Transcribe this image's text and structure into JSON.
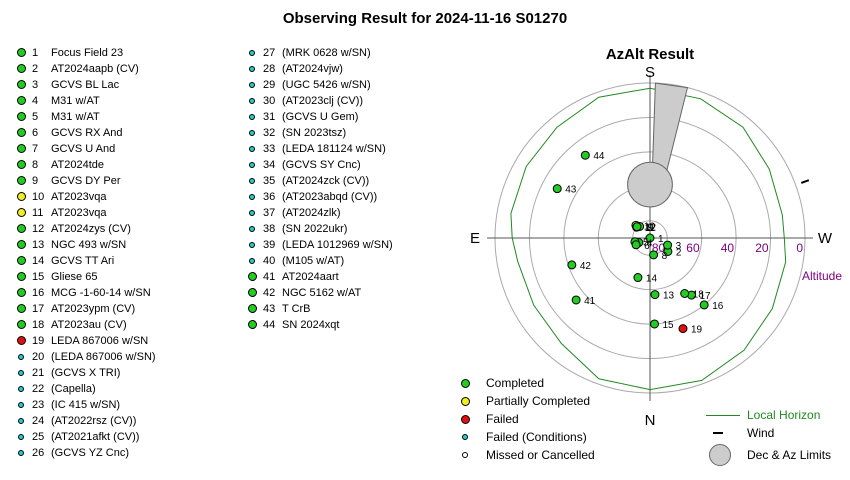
{
  "title": "Observing Result for 2024-11-16 S01270",
  "colors": {
    "completed": "#22cc22",
    "partial": "#eeee22",
    "failed": "#dd1111",
    "failed_conditions": "#22cccc",
    "missed": "#ffffff",
    "horizon": "#228822",
    "limits_fill": "#cccccc",
    "altitude_label": "#800080"
  },
  "targets": [
    {
      "n": "1",
      "name": "Focus Field 23",
      "status": "completed"
    },
    {
      "n": "2",
      "name": "AT2024aapb (CV)",
      "status": "completed"
    },
    {
      "n": "3",
      "name": "GCVS BL Lac",
      "status": "completed"
    },
    {
      "n": "4",
      "name": "M31 w/AT",
      "status": "completed"
    },
    {
      "n": "5",
      "name": "M31 w/AT",
      "status": "completed"
    },
    {
      "n": "6",
      "name": "GCVS RX And",
      "status": "completed"
    },
    {
      "n": "7",
      "name": "GCVS U And",
      "status": "completed"
    },
    {
      "n": "8",
      "name": "AT2024tde",
      "status": "completed"
    },
    {
      "n": "9",
      "name": "GCVS DY Per",
      "status": "completed"
    },
    {
      "n": "10",
      "name": "AT2023vqa",
      "status": "partial"
    },
    {
      "n": "11",
      "name": "AT2023vqa",
      "status": "partial"
    },
    {
      "n": "12",
      "name": "AT2024zys (CV)",
      "status": "completed"
    },
    {
      "n": "13",
      "name": "NGC 493 w/SN",
      "status": "completed"
    },
    {
      "n": "14",
      "name": "GCVS TT Ari",
      "status": "completed"
    },
    {
      "n": "15",
      "name": "Gliese 65",
      "status": "completed"
    },
    {
      "n": "16",
      "name": "MCG -1-60-14 w/SN",
      "status": "completed"
    },
    {
      "n": "17",
      "name": "AT2023ypm (CV)",
      "status": "completed"
    },
    {
      "n": "18",
      "name": "AT2023au (CV)",
      "status": "completed"
    },
    {
      "n": "19",
      "name": "LEDA 867006 w/SN",
      "status": "failed"
    },
    {
      "n": "20",
      "name": "(LEDA 867006 w/SN)",
      "status": "failed_conditions"
    },
    {
      "n": "21",
      "name": "(GCVS X TRI)",
      "status": "failed_conditions"
    },
    {
      "n": "22",
      "name": "(Capella)",
      "status": "failed_conditions"
    },
    {
      "n": "23",
      "name": "(IC 415 w/SN)",
      "status": "failed_conditions"
    },
    {
      "n": "24",
      "name": "(AT2022rsz (CV))",
      "status": "failed_conditions"
    },
    {
      "n": "25",
      "name": "(AT2021afkt (CV))",
      "status": "failed_conditions"
    },
    {
      "n": "26",
      "name": "(GCVS YZ Cnc)",
      "status": "failed_conditions"
    },
    {
      "n": "27",
      "name": "(MRK 0628 w/SN)",
      "status": "failed_conditions"
    },
    {
      "n": "28",
      "name": "(AT2024vjw)",
      "status": "failed_conditions"
    },
    {
      "n": "29",
      "name": "(UGC 5426 w/SN)",
      "status": "failed_conditions"
    },
    {
      "n": "30",
      "name": "(AT2023clj (CV))",
      "status": "failed_conditions"
    },
    {
      "n": "31",
      "name": "(GCVS U Gem)",
      "status": "failed_conditions"
    },
    {
      "n": "32",
      "name": "(SN 2023tsz)",
      "status": "failed_conditions"
    },
    {
      "n": "33",
      "name": "(LEDA 181124 w/SN)",
      "status": "failed_conditions"
    },
    {
      "n": "34",
      "name": "(GCVS SY Cnc)",
      "status": "failed_conditions"
    },
    {
      "n": "35",
      "name": "(AT2024zck (CV))",
      "status": "failed_conditions"
    },
    {
      "n": "36",
      "name": "(AT2023abqd (CV))",
      "status": "failed_conditions"
    },
    {
      "n": "37",
      "name": "(AT2024zlk)",
      "status": "failed_conditions"
    },
    {
      "n": "38",
      "name": "(SN 2022ukr)",
      "status": "failed_conditions"
    },
    {
      "n": "39",
      "name": "(LEDA 1012969 w/SN)",
      "status": "failed_conditions"
    },
    {
      "n": "40",
      "name": "(M105 w/AT)",
      "status": "failed_conditions"
    },
    {
      "n": "41",
      "name": "AT2024aart",
      "status": "completed"
    },
    {
      "n": "42",
      "name": "NGC 5162 w/AT",
      "status": "completed"
    },
    {
      "n": "43",
      "name": "T CrB",
      "status": "completed"
    },
    {
      "n": "44",
      "name": "SN 2024xqt",
      "status": "completed"
    }
  ],
  "chart_data": {
    "type": "polar-scatter",
    "title": "AzAlt Result",
    "directions": {
      "top": "S",
      "bottom": "N",
      "left": "E",
      "right": "W"
    },
    "altitude_axis_label": "Altitude",
    "altitude_rings": [
      0,
      20,
      40,
      60,
      80
    ],
    "altitude_tick_labels": [
      "80",
      "60",
      "40",
      "20",
      "0"
    ],
    "points": [
      {
        "label": "1",
        "az": 270,
        "alt": 90,
        "status": "completed"
      },
      {
        "label": "2",
        "az": 233,
        "alt": 77,
        "status": "completed"
      },
      {
        "label": "3",
        "az": 248,
        "alt": 79,
        "status": "completed"
      },
      {
        "label": "4",
        "az": 112,
        "alt": 83,
        "status": "completed"
      },
      {
        "label": "5",
        "az": 104,
        "alt": 81,
        "status": "completed"
      },
      {
        "label": "6",
        "az": 116,
        "alt": 81,
        "status": "completed"
      },
      {
        "label": "8",
        "az": 192,
        "alt": 80,
        "status": "completed"
      },
      {
        "label": "9",
        "az": 42,
        "alt": 81,
        "status": "completed"
      },
      {
        "label": "10",
        "az": 48,
        "alt": 79,
        "status": "partial"
      },
      {
        "label": "11",
        "az": 51,
        "alt": 80,
        "status": "partial"
      },
      {
        "label": "12",
        "az": 49,
        "alt": 80,
        "status": "completed"
      },
      {
        "label": "13",
        "az": 185,
        "alt": 57,
        "status": "completed"
      },
      {
        "label": "14",
        "az": 163,
        "alt": 66,
        "status": "completed"
      },
      {
        "label": "15",
        "az": 183,
        "alt": 40,
        "status": "completed"
      },
      {
        "label": "16",
        "az": 219,
        "alt": 40,
        "status": "completed"
      },
      {
        "label": "17",
        "az": 216,
        "alt": 49,
        "status": "completed"
      },
      {
        "label": "18",
        "az": 212,
        "alt": 52,
        "status": "completed"
      },
      {
        "label": "19",
        "az": 200,
        "alt": 34,
        "status": "failed"
      },
      {
        "label": "41",
        "az": 130,
        "alt": 34,
        "status": "completed"
      },
      {
        "label": "42",
        "az": 109,
        "alt": 42,
        "status": "completed"
      },
      {
        "label": "43",
        "az": 62,
        "alt": 29,
        "status": "completed"
      },
      {
        "label": "44",
        "az": 38,
        "alt": 29,
        "status": "completed"
      }
    ],
    "local_horizon": [
      [
        0,
        3
      ],
      [
        20,
        3
      ],
      [
        40,
        6
      ],
      [
        60,
        7
      ],
      [
        80,
        8
      ],
      [
        90,
        10
      ],
      [
        100,
        12
      ],
      [
        120,
        12
      ],
      [
        140,
        10
      ],
      [
        160,
        3
      ],
      [
        180,
        2
      ],
      [
        200,
        2
      ],
      [
        220,
        5
      ],
      [
        240,
        8
      ],
      [
        260,
        10
      ],
      [
        270,
        12
      ],
      [
        280,
        12
      ],
      [
        300,
        10
      ],
      [
        320,
        6
      ],
      [
        340,
        4
      ],
      [
        360,
        3
      ]
    ],
    "wind": {
      "az": 290
    },
    "dec_az_limits": {
      "circle_az": 0,
      "circle_alt": 59,
      "circle_radius_deg": 13,
      "wedge_az": [
        346,
        358
      ],
      "wedge_alt": [
        0,
        59
      ]
    }
  },
  "legend": [
    {
      "label": "Completed",
      "status": "completed"
    },
    {
      "label": "Partially Completed",
      "status": "partial"
    },
    {
      "label": "Failed",
      "status": "failed"
    },
    {
      "label": "Failed (Conditions)",
      "status": "failed_conditions"
    },
    {
      "label": "Missed or Cancelled",
      "status": "missed"
    }
  ],
  "legend_right": [
    {
      "label": "Local Horizon",
      "icon": "line"
    },
    {
      "label": "Wind",
      "icon": "wind"
    },
    {
      "label": "Dec & Az Limits",
      "icon": "limits"
    }
  ]
}
